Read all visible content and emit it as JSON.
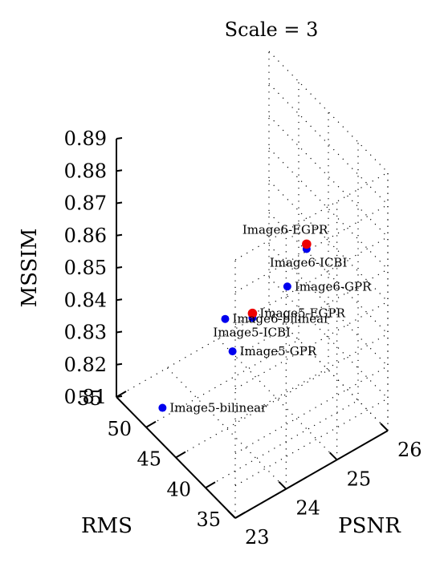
{
  "chart_data": {
    "type": "scatter3d",
    "title": "Scale = 3",
    "axes": {
      "x": {
        "label": "PSNR",
        "range": [
          23,
          26
        ],
        "ticks": [
          "23",
          "24",
          "25",
          "26"
        ]
      },
      "y": {
        "label": "RMS",
        "range": [
          35,
          55
        ],
        "ticks": [
          "35",
          "40",
          "45",
          "50",
          "55"
        ]
      },
      "z": {
        "label": "MSSIM",
        "range": [
          0.81,
          0.89
        ],
        "ticks": [
          "0.81",
          "0.82",
          "0.83",
          "0.84",
          "0.85",
          "0.86",
          "0.87",
          "0.88",
          "0.89"
        ]
      }
    },
    "grid": true,
    "colors": {
      "blue": "#0000ee",
      "red": "#ee0000"
    },
    "points": [
      {
        "label": "Image5-bilinear",
        "psnr": 23.31,
        "rms": 49.9,
        "mssim": 0.8134,
        "color": "blue"
      },
      {
        "label": "Image5-GPR",
        "psnr": 24.22,
        "rms": 45.9,
        "mssim": 0.8302,
        "color": "blue"
      },
      {
        "label": "Image5-ICBI",
        "psnr": 24.39,
        "rms": 44.0,
        "mssim": 0.8426,
        "color": "blue"
      },
      {
        "label": "Image5-EGPR",
        "psnr": 24.39,
        "rms": 44.0,
        "mssim": 0.844,
        "color": "red"
      },
      {
        "label": "Image6-bilinear",
        "psnr": 23.69,
        "rms": 42.6,
        "mssim": 0.8512,
        "color": "blue"
      },
      {
        "label": "Image6-GPR",
        "psnr": 24.55,
        "rms": 39.5,
        "mssim": 0.8593,
        "color": "blue"
      },
      {
        "label": "Image6-ICBI",
        "psnr": 24.73,
        "rms": 37.8,
        "mssim": 0.8725,
        "color": "blue"
      },
      {
        "label": "Image6-EGPR",
        "psnr": 24.73,
        "rms": 37.8,
        "mssim": 0.874,
        "color": "red"
      }
    ]
  }
}
